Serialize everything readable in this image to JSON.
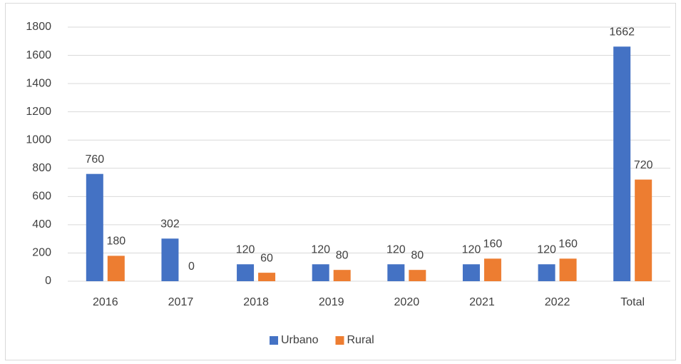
{
  "chart_data": {
    "type": "bar",
    "categories": [
      "2016",
      "2017",
      "2018",
      "2019",
      "2020",
      "2021",
      "2022",
      "Total"
    ],
    "series": [
      {
        "name": "Urbano",
        "color": "#4472c4",
        "values": [
          760,
          302,
          120,
          120,
          120,
          120,
          120,
          1662
        ]
      },
      {
        "name": "Rural",
        "color": "#ed7d31",
        "values": [
          180,
          0,
          60,
          80,
          80,
          160,
          160,
          720
        ]
      }
    ],
    "ylim": [
      0,
      1800
    ],
    "yticks": [
      0,
      200,
      400,
      600,
      800,
      1000,
      1200,
      1400,
      1600,
      1800
    ],
    "grid": true,
    "legend": "bottom"
  }
}
